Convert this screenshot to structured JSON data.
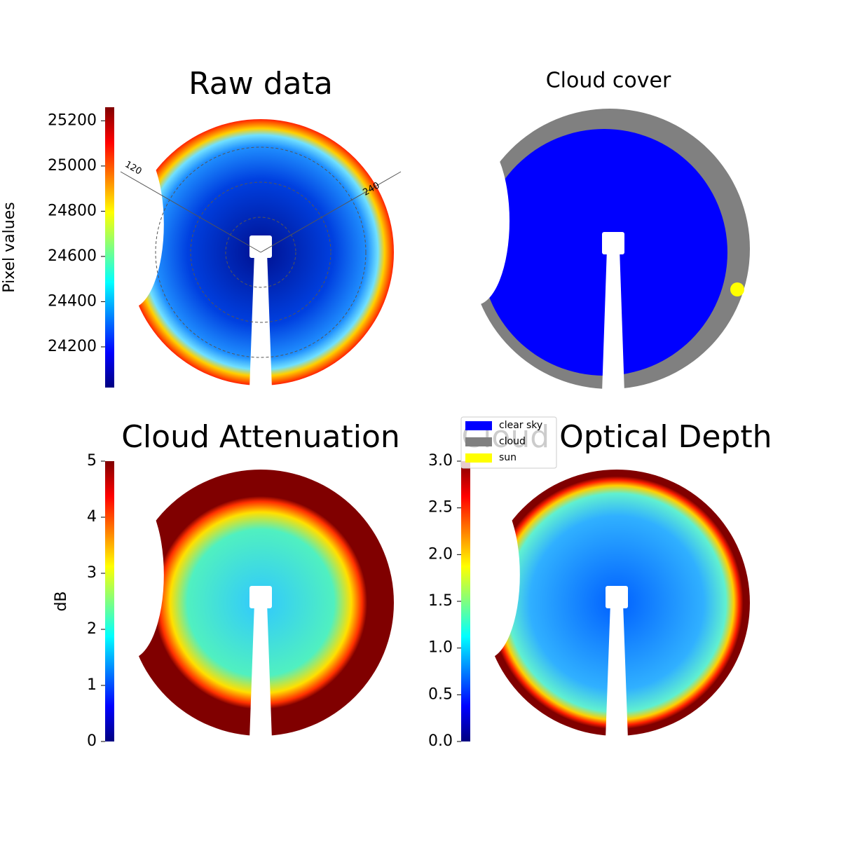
{
  "chart_data": [
    {
      "type": "image",
      "title": "Raw data",
      "colorbar_label": "Pixel values",
      "clim": [
        24020,
        25260
      ],
      "cticks": [
        24200,
        24400,
        24600,
        24800,
        25000,
        25200
      ],
      "annotations": [
        "120",
        "240"
      ]
    },
    {
      "type": "mask",
      "title": "Cloud cover",
      "series": [
        {
          "name": "clear sky",
          "color": "#0000ff"
        },
        {
          "name": "cloud",
          "color": "#808080"
        },
        {
          "name": "sun",
          "color": "#ffff00"
        }
      ]
    },
    {
      "type": "image",
      "title": "Cloud Attenuation",
      "colorbar_label": "dB",
      "clim": [
        0,
        5
      ],
      "cticks": [
        0,
        1,
        2,
        3,
        4,
        5
      ]
    },
    {
      "type": "image",
      "title": "Cloud Optical Depth",
      "clim": [
        0,
        3
      ],
      "cticks": [
        {
          "value": 0,
          "label": "0.0"
        },
        {
          "value": 0.5,
          "label": "0.5"
        },
        {
          "value": 1,
          "label": "1.0"
        },
        {
          "value": 1.5,
          "label": "1.5"
        },
        {
          "value": 2,
          "label": "2.0"
        },
        {
          "value": 2.5,
          "label": "2.5"
        },
        {
          "value": 3,
          "label": "3.0"
        }
      ]
    }
  ]
}
